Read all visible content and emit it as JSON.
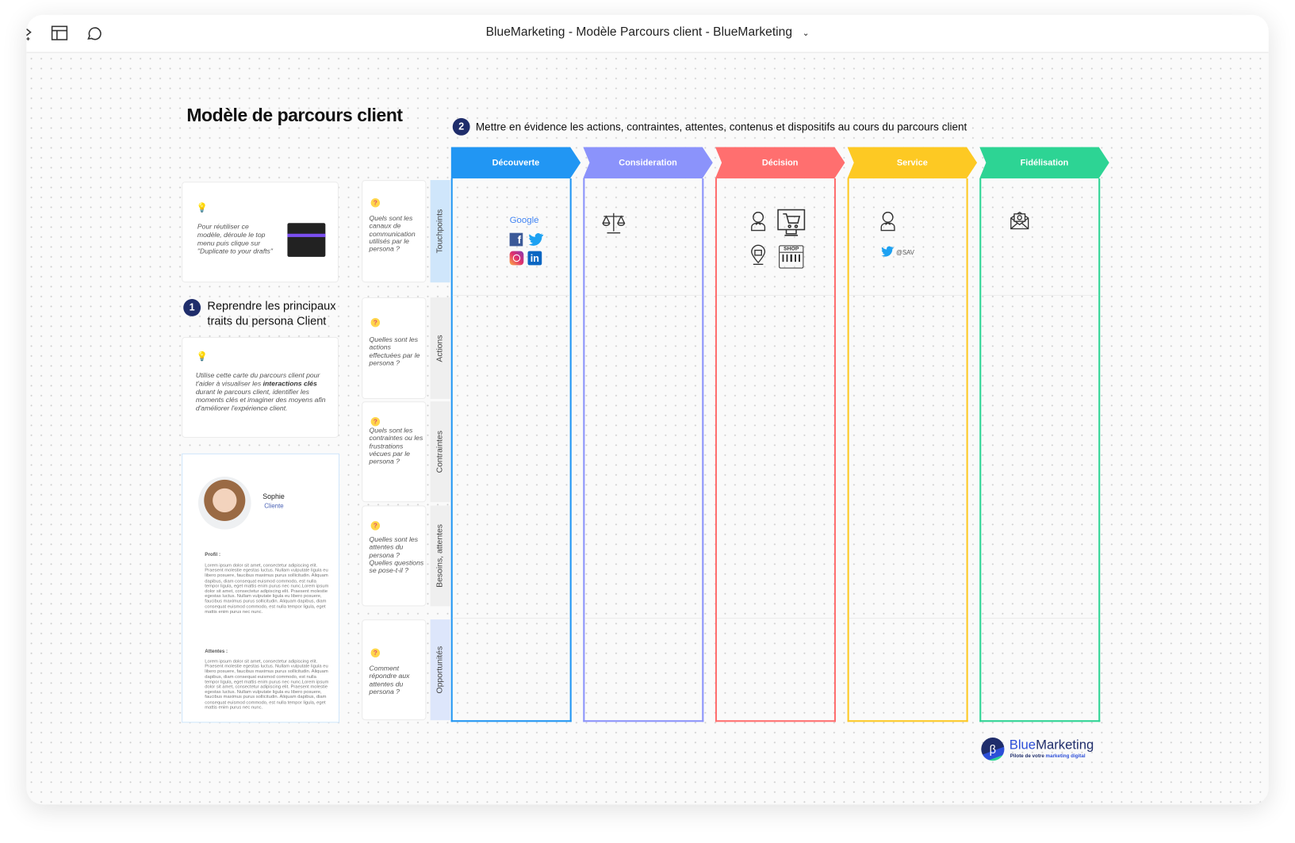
{
  "window": {
    "title": "BlueMarketing - Modèle Parcours client - BlueMarketing"
  },
  "toolbar": {
    "icons": [
      "cursor-icon",
      "layout-icon",
      "comment-icon",
      "chevron-down-icon"
    ]
  },
  "board": {
    "title": "Modèle de parcours client",
    "tip1": "Pour réutiliser ce modèle, déroule le top menu puis clique sur \"Duplicate to your drafts\"",
    "step1": {
      "number": "1",
      "text": "Reprendre les principaux traits du persona Client"
    },
    "tip2": {
      "before": "Utilise cette carte du parcours client pour t'aider à visualiser les ",
      "bold": "interactions clés",
      "after": " durant le parcours client, identifier les moments clés et imaginer des moyens afin d'améliorer l'expérience client."
    },
    "persona": {
      "name": "Sophie",
      "role": "Cliente",
      "profile_label": "Profil :",
      "profile_text": "Lorem ipsum dolor sit amet, consectetur adipiscing elit. Praesent molestie egestas luctus. Nullam vulputate ligula eu libero posuere, faucibus maximus purus sollicitudin. Aliquam dapibus, diam consequat euismod commodo, est nulla tempor ligula, eget mattis enim purus nec nunc.Lorem ipsum dolor sit amet, consectetur adipiscing elit. Praesent molestie egestas luctus. Nullam vulputate ligula eu libero posuere, faucibus maximus purus sollicitudin. Aliquam dapibus, diam consequat euismod commodo, est nulla tempor ligula, eget mattis enim purus nec nunc.",
      "expect_label": "Attentes :",
      "expect_text": "Lorem ipsum dolor sit amet, consectetur adipiscing elit. Praesent molestie egestas luctus. Nullam vulputate ligula eu libero posuere, faucibus maximus purus sollicitudin. Aliquam dapibus, diam consequat euismod commodo, est nulla tempor ligula, eget mattis enim purus nec nunc.Lorem ipsum dolor sit amet, consectetur adipiscing elit. Praesent molestie egestas luctus. Nullam vulputate ligula eu libero posuere, faucibus maximus purus sollicitudin. Aliquam dapibus, diam consequat euismod commodo, est nulla tempor ligula, eget mattis enim purus nec nunc."
    },
    "step2": {
      "number": "2",
      "text": "Mettre en évidence les actions, contraintes, attentes, contenus et dispositifs au cours du parcours client"
    },
    "rows": [
      {
        "label": "Touchpoints",
        "question": "Quels sont les canaux de communication utilisés par le persona  ?",
        "color": "#cfe6fb"
      },
      {
        "label": "Actions",
        "question": "Quelles sont les actions effectuées par le persona ?",
        "color": "#efefef"
      },
      {
        "label": "Contraintes",
        "question": "Quels sont les contraintes ou les frustrations vécues par le persona  ?",
        "color": "#efefef"
      },
      {
        "label": "Besoins, attentes",
        "question": "Quelles sont les attentes du persona ? Quelles questions se pose-t-il ?",
        "color": "#efefef"
      },
      {
        "label": "Opportunités",
        "question": "Comment répondre aux attentes du persona ?",
        "color": "#dde6fb"
      }
    ],
    "question_mark": "?",
    "stages": [
      {
        "label": "Découverte",
        "color": "#2196f3"
      },
      {
        "label": "Consideration",
        "color": "#8b93fb"
      },
      {
        "label": "Décision",
        "color": "#ff6f6f"
      },
      {
        "label": "Service",
        "color": "#fdc923"
      },
      {
        "label": "Fidélisation",
        "color": "#2dd494"
      }
    ],
    "touchpoints": {
      "google": "Google",
      "twitter_handle": "@SAV",
      "shop_sign": "SHOP"
    }
  },
  "logo": {
    "brand_a": "Blue",
    "brand_b": "Marketing",
    "tagline_a": "Pilote de votre ",
    "tagline_b": "marketing digital"
  }
}
